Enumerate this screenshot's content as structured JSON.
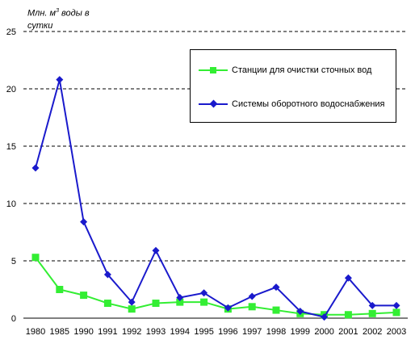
{
  "chart_data": {
    "type": "line",
    "ylabel_main": "Млн. м",
    "ylabel_sup": "3",
    "ylabel_rest": " воды в сутки",
    "categories": [
      "1980",
      "1985",
      "1990",
      "1991",
      "1992",
      "1993",
      "1994",
      "1995",
      "1996",
      "1997",
      "1998",
      "1999",
      "2000",
      "2001",
      "2002",
      "2003"
    ],
    "y_ticks": [
      "0",
      "5",
      "10",
      "15",
      "20",
      "25"
    ],
    "ylim": [
      0,
      25
    ],
    "grid": "horizontal-dashed",
    "legend_position": "top-right",
    "series": [
      {
        "name": "Станции для очистки сточных вод",
        "color": "#33ee33",
        "marker": "square",
        "values": [
          5.3,
          2.5,
          2.0,
          1.3,
          0.8,
          1.3,
          1.4,
          1.4,
          0.8,
          1.0,
          0.7,
          0.4,
          0.3,
          0.3,
          0.4,
          0.5
        ]
      },
      {
        "name": "Системы оборотного водоснабжения",
        "color": "#1a1acc",
        "marker": "diamond",
        "values": [
          13.1,
          20.8,
          8.4,
          3.8,
          1.4,
          5.9,
          1.8,
          2.2,
          0.9,
          1.9,
          2.7,
          0.6,
          0.1,
          3.5,
          1.1,
          1.1
        ]
      }
    ]
  }
}
